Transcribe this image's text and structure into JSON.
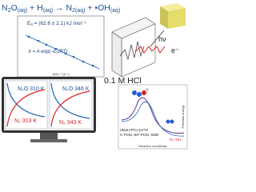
{
  "equation": [
    "N",
    "2",
    "O",
    "(aq)",
    " + H",
    "(aq)",
    " → N",
    "2",
    "(aq)",
    " + •OH",
    "(aq)"
  ],
  "arrhenius": {
    "activation_energy": "Eₐ = (62.6 ± 2.1) kJ mol⁻¹",
    "rate_law": "k = A·exp(−Eₐ/RT)",
    "x_label": "1000 / T (K⁻¹)"
  },
  "photolysis": {
    "light": "hν",
    "electron": "e⁻",
    "solution": "0.1 M HCl"
  },
  "kinetics": {
    "left": {
      "top": "N₂O 310 K",
      "bottom": "N₂ 313 K"
    },
    "right": {
      "top": "N₂O 346 K",
      "bottom": "N₂ 343 K"
    }
  },
  "computation": {
    "method": "UB3LYP/cc-pVTZ",
    "solvation": "C-PCM, IEF-PCM, SMD",
    "y_label": "Potential energy",
    "x_label": "Reaction coordinate",
    "product": "N₂+OH"
  }
}
